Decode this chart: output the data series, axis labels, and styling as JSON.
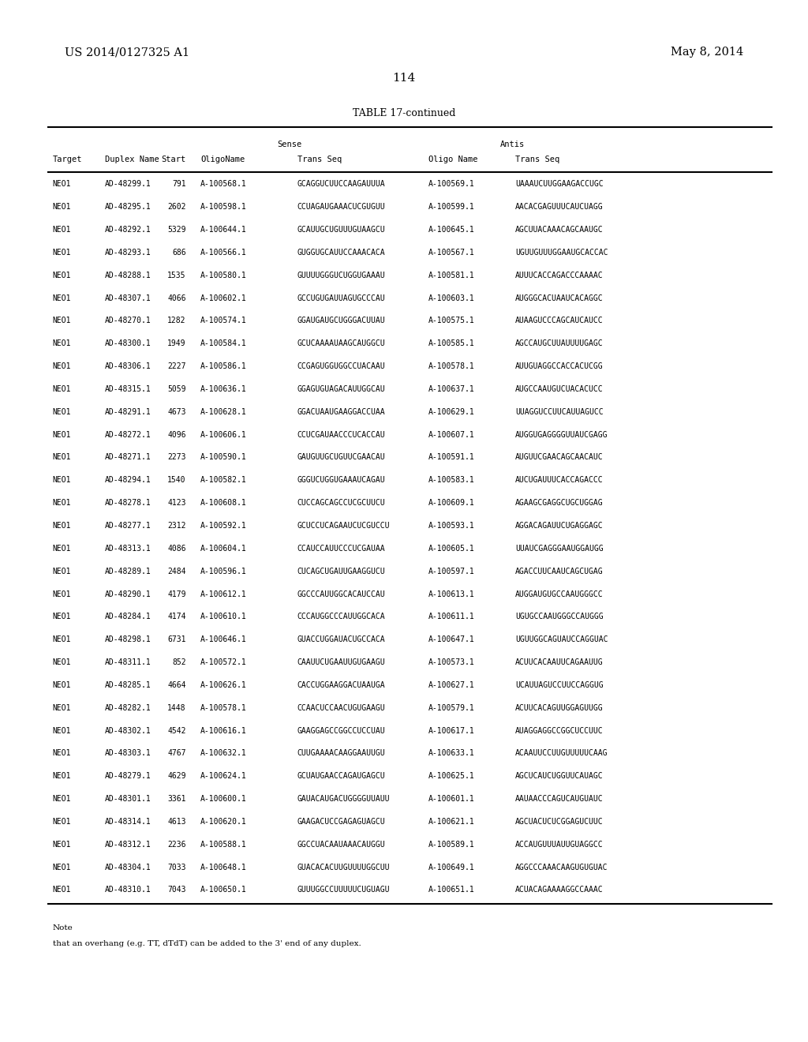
{
  "header_left": "US 2014/0127325 A1",
  "header_right": "May 8, 2014",
  "page_number": "114",
  "table_title": "TABLE 17-continued",
  "rows": [
    [
      "NEO1",
      "AD-48299.1",
      "791",
      "A-100568.1",
      "GCAGGUCUUCCAAGAUUUA",
      "A-100569.1",
      "UAAAUCUUGGAAGACCUGC"
    ],
    [
      "NEO1",
      "AD-48295.1",
      "2602",
      "A-100598.1",
      "CCUAGAUGAAACUCGUGUU",
      "A-100599.1",
      "AACACGAGUUUCAUCUAGG"
    ],
    [
      "NEO1",
      "AD-48292.1",
      "5329",
      "A-100644.1",
      "GCAUUGCUGUUUGUAAGCU",
      "A-100645.1",
      "AGCUUACAAACAGCAAUGC"
    ],
    [
      "NEO1",
      "AD-48293.1",
      "686",
      "A-100566.1",
      "GUGGUGCAUUCCAAACACA",
      "A-100567.1",
      "UGUUGUUUGGAAUGCACCAC"
    ],
    [
      "NEO1",
      "AD-48288.1",
      "1535",
      "A-100580.1",
      "GUUUUGGGUCUGGUGAAAU",
      "A-100581.1",
      "AUUUCACCAGACCCAAAAC"
    ],
    [
      "NEO1",
      "AD-48307.1",
      "4066",
      "A-100602.1",
      "GCCUGUGAUUAGUGCCCAU",
      "A-100603.1",
      "AUGGGCACUAAUCACAGGC"
    ],
    [
      "NEO1",
      "AD-48270.1",
      "1282",
      "A-100574.1",
      "GGAUGAUGCUGGGACUUAU",
      "A-100575.1",
      "AUAAGUCCCAGCAUCAUCC"
    ],
    [
      "NEO1",
      "AD-48300.1",
      "1949",
      "A-100584.1",
      "GCUCAAAAUAAGCAUGGCU",
      "A-100585.1",
      "AGCCAUGCUUAUUUUGAGC"
    ],
    [
      "NEO1",
      "AD-48306.1",
      "2227",
      "A-100586.1",
      "CCGAGUGGUGGCCUACAAU",
      "A-100578.1",
      "AUUGUAGGCCACCACUCGG"
    ],
    [
      "NEO1",
      "AD-48315.1",
      "5059",
      "A-100636.1",
      "GGAGUGUAGACAUUGGCAU",
      "A-100637.1",
      "AUGCCAAUGUCUACACUCC"
    ],
    [
      "NEO1",
      "AD-48291.1",
      "4673",
      "A-100628.1",
      "GGACUAAUGAAGGACCUAA",
      "A-100629.1",
      "UUAGGUCCUUCAUUAGUCC"
    ],
    [
      "NEO1",
      "AD-48272.1",
      "4096",
      "A-100606.1",
      "CCUCGAUAACCCUCACCAU",
      "A-100607.1",
      "AUGGUGAGGGGUUAUCGAGG"
    ],
    [
      "NEO1",
      "AD-48271.1",
      "2273",
      "A-100590.1",
      "GAUGUUGCUGUUCGAACAU",
      "A-100591.1",
      "AUGUUCGAACAGCAACAUC"
    ],
    [
      "NEO1",
      "AD-48294.1",
      "1540",
      "A-100582.1",
      "GGGUCUGGUGAAAUCAGAU",
      "A-100583.1",
      "AUCUGAUUUCACCAGACCC"
    ],
    [
      "NEO1",
      "AD-48278.1",
      "4123",
      "A-100608.1",
      "CUCCAGCAGCCUCGCUUCU",
      "A-100609.1",
      "AGAAGCGAGGCUGCUGGAG"
    ],
    [
      "NEO1",
      "AD-48277.1",
      "2312",
      "A-100592.1",
      "GCUCCUCAGAAUCUCGUCCU",
      "A-100593.1",
      "AGGACAGAUUCUGAGGAGC"
    ],
    [
      "NEO1",
      "AD-48313.1",
      "4086",
      "A-100604.1",
      "CCAUCCAUUCCCUCGAUAA",
      "A-100605.1",
      "UUAUCGAGGGAAUGGAUGG"
    ],
    [
      "NEO1",
      "AD-48289.1",
      "2484",
      "A-100596.1",
      "CUCAGCUGAUUGAAGGUCU",
      "A-100597.1",
      "AGACCUUCAAUCAGCUGAG"
    ],
    [
      "NEO1",
      "AD-48290.1",
      "4179",
      "A-100612.1",
      "GGCCCAUUGGCACAUCCAU",
      "A-100613.1",
      "AUGGAUGUGCCAAUGGGCC"
    ],
    [
      "NEO1",
      "AD-48284.1",
      "4174",
      "A-100610.1",
      "CCCAUGGCCCAUUGGCACA",
      "A-100611.1",
      "UGUGCCAAUGGGCCAUGGG"
    ],
    [
      "NEO1",
      "AD-48298.1",
      "6731",
      "A-100646.1",
      "GUACCUGGAUACUGCCACA",
      "A-100647.1",
      "UGUUGGCAGUAUCCAGGUAC"
    ],
    [
      "NEO1",
      "AD-48311.1",
      "852",
      "A-100572.1",
      "CAAUUCUGAAUUGUGAAGU",
      "A-100573.1",
      "ACUUCACAAUUCAGAAUUG"
    ],
    [
      "NEO1",
      "AD-48285.1",
      "4664",
      "A-100626.1",
      "CACCUGGAAGGACUAAUGA",
      "A-100627.1",
      "UCAUUAGUCCUUCCAGGUG"
    ],
    [
      "NEO1",
      "AD-48282.1",
      "1448",
      "A-100578.1",
      "CCAACUCCAACUGUGAAGU",
      "A-100579.1",
      "ACUUCACAGUUGGAGUUGG"
    ],
    [
      "NEO1",
      "AD-48302.1",
      "4542",
      "A-100616.1",
      "GAAGGAGCCGGCCUCCUAU",
      "A-100617.1",
      "AUAGGAGGCCGGCUCCUUC"
    ],
    [
      "NEO1",
      "AD-48303.1",
      "4767",
      "A-100632.1",
      "CUUGAAAACAAGGAAUUGU",
      "A-100633.1",
      "ACAAUUCCUUGUUUUUCAAG"
    ],
    [
      "NEO1",
      "AD-48279.1",
      "4629",
      "A-100624.1",
      "GCUAUGAACCAGAUGAGCU",
      "A-100625.1",
      "AGCUCAUCUGGUUCAUAGC"
    ],
    [
      "NEO1",
      "AD-48301.1",
      "3361",
      "A-100600.1",
      "GAUACAUGACUGGGGUUAUU",
      "A-100601.1",
      "AAUAACCCAGUCAUGUAUC"
    ],
    [
      "NEO1",
      "AD-48314.1",
      "4613",
      "A-100620.1",
      "GAAGACUCCGAGAGUAGCU",
      "A-100621.1",
      "AGCUACUCUCGGAGUCUUC"
    ],
    [
      "NEO1",
      "AD-48312.1",
      "2236",
      "A-100588.1",
      "GGCCUACAAUAAACAUGGU",
      "A-100589.1",
      "ACCAUGUUUAUUGUAGGCC"
    ],
    [
      "NEO1",
      "AD-48304.1",
      "7033",
      "A-100648.1",
      "GUACACACUUGUUUUGGCUU",
      "A-100649.1",
      "AGGCCCAAACAAGUGUGUAC"
    ],
    [
      "NEO1",
      "AD-48310.1",
      "7043",
      "A-100650.1",
      "GUUUGGCCUUUUUCUGUAGU",
      "A-100651.1",
      "ACUACAGAAAAGGCCAAAC"
    ]
  ],
  "note_line1": "Note",
  "note_line2": "that an overhang (e.g. TT, dTdT) can be added to the 3' end of any duplex.",
  "bg_color": "#ffffff",
  "text_color": "#000000"
}
